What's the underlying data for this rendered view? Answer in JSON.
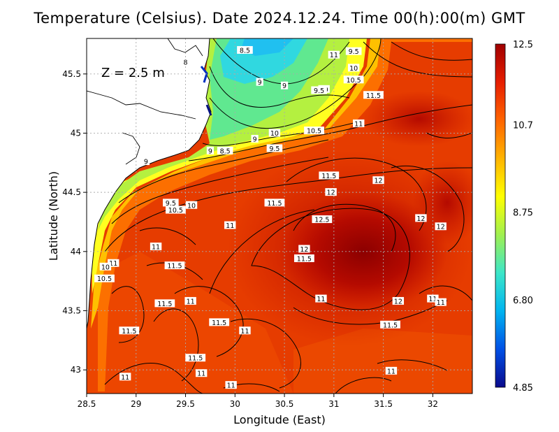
{
  "title": "Temperature (Celsius). Date 2024.12.24. Time 00(h):00(m) GMT",
  "depth_label": "Z = 2.5 m",
  "x_axis": {
    "label": "Longitude (East)",
    "range": [
      28.5,
      32.4
    ],
    "ticks": [
      "28.5",
      "29",
      "29.5",
      "30",
      "30.5",
      "31",
      "31.5",
      "32"
    ]
  },
  "y_axis": {
    "label": "Latitude (North)",
    "range": [
      42.8,
      45.8
    ],
    "ticks": [
      "43",
      "43.5",
      "44",
      "44.5",
      "45",
      "45.5"
    ]
  },
  "colorbar": {
    "min": 4.85,
    "max": 12.5,
    "tick_labels": [
      "12.5",
      "10.7",
      "8.75",
      "6.80",
      "4.85"
    ],
    "colors": [
      "#0a0a8c",
      "#0050e6",
      "#00b4f0",
      "#3ce6c8",
      "#a0f050",
      "#ffff00",
      "#ffb400",
      "#ff6400",
      "#e61e00",
      "#a00000"
    ]
  },
  "contour_labels": [
    {
      "text": "8",
      "lon": 29.5,
      "lat": 45.6
    },
    {
      "text": "8.5",
      "lon": 30.1,
      "lat": 45.7
    },
    {
      "text": "9",
      "lon": 30.25,
      "lat": 45.43
    },
    {
      "text": "9",
      "lon": 30.5,
      "lat": 45.4
    },
    {
      "text": "9.5",
      "lon": 31.2,
      "lat": 45.69
    },
    {
      "text": "10",
      "lon": 31.2,
      "lat": 45.55
    },
    {
      "text": "10.5",
      "lon": 31.2,
      "lat": 45.45
    },
    {
      "text": "11",
      "lon": 31.0,
      "lat": 45.66
    },
    {
      "text": "11.5",
      "lon": 31.4,
      "lat": 45.32
    },
    {
      "text": "10",
      "lon": 30.9,
      "lat": 45.37
    },
    {
      "text": "9.5",
      "lon": 30.85,
      "lat": 45.36
    },
    {
      "text": "10",
      "lon": 30.4,
      "lat": 45.0
    },
    {
      "text": "10.5",
      "lon": 30.8,
      "lat": 45.02
    },
    {
      "text": "11",
      "lon": 31.25,
      "lat": 45.08
    },
    {
      "text": "9",
      "lon": 30.2,
      "lat": 44.95
    },
    {
      "text": "9.5",
      "lon": 30.4,
      "lat": 44.87
    },
    {
      "text": "8.5",
      "lon": 29.9,
      "lat": 44.85
    },
    {
      "text": "9",
      "lon": 29.75,
      "lat": 44.85
    },
    {
      "text": "9",
      "lon": 29.1,
      "lat": 44.76
    },
    {
      "text": "11.5",
      "lon": 30.95,
      "lat": 44.64
    },
    {
      "text": "12",
      "lon": 31.45,
      "lat": 44.6
    },
    {
      "text": "12",
      "lon": 30.97,
      "lat": 44.5
    },
    {
      "text": "11.5",
      "lon": 30.4,
      "lat": 44.41
    },
    {
      "text": "9.5",
      "lon": 29.35,
      "lat": 44.41
    },
    {
      "text": "10",
      "lon": 29.56,
      "lat": 44.39
    },
    {
      "text": "10.5",
      "lon": 29.4,
      "lat": 44.35
    },
    {
      "text": "11",
      "lon": 29.95,
      "lat": 44.22
    },
    {
      "text": "12.5",
      "lon": 30.88,
      "lat": 44.27
    },
    {
      "text": "12",
      "lon": 31.88,
      "lat": 44.28
    },
    {
      "text": "12",
      "lon": 32.08,
      "lat": 44.21
    },
    {
      "text": "11",
      "lon": 29.2,
      "lat": 44.04
    },
    {
      "text": "12",
      "lon": 30.7,
      "lat": 44.02
    },
    {
      "text": "11.5",
      "lon": 30.7,
      "lat": 43.94
    },
    {
      "text": "11",
      "lon": 28.77,
      "lat": 43.9
    },
    {
      "text": "10",
      "lon": 28.69,
      "lat": 43.87
    },
    {
      "text": "11.5",
      "lon": 29.39,
      "lat": 43.88
    },
    {
      "text": "10.5",
      "lon": 28.68,
      "lat": 43.77
    },
    {
      "text": "11",
      "lon": 30.87,
      "lat": 43.6
    },
    {
      "text": "12",
      "lon": 31.65,
      "lat": 43.58
    },
    {
      "text": "11",
      "lon": 32.0,
      "lat": 43.6
    },
    {
      "text": "11",
      "lon": 32.08,
      "lat": 43.57
    },
    {
      "text": "11.5",
      "lon": 29.29,
      "lat": 43.56
    },
    {
      "text": "11",
      "lon": 29.55,
      "lat": 43.58
    },
    {
      "text": "11.5",
      "lon": 29.84,
      "lat": 43.4
    },
    {
      "text": "11",
      "lon": 30.1,
      "lat": 43.33
    },
    {
      "text": "11.5",
      "lon": 31.57,
      "lat": 43.38
    },
    {
      "text": "11.5",
      "lon": 28.93,
      "lat": 43.33
    },
    {
      "text": "11.5",
      "lon": 29.6,
      "lat": 43.1
    },
    {
      "text": "11",
      "lon": 29.66,
      "lat": 42.97
    },
    {
      "text": "11",
      "lon": 31.58,
      "lat": 42.99
    },
    {
      "text": "11",
      "lon": 28.89,
      "lat": 42.94
    },
    {
      "text": "11",
      "lon": 29.96,
      "lat": 42.87
    }
  ]
}
